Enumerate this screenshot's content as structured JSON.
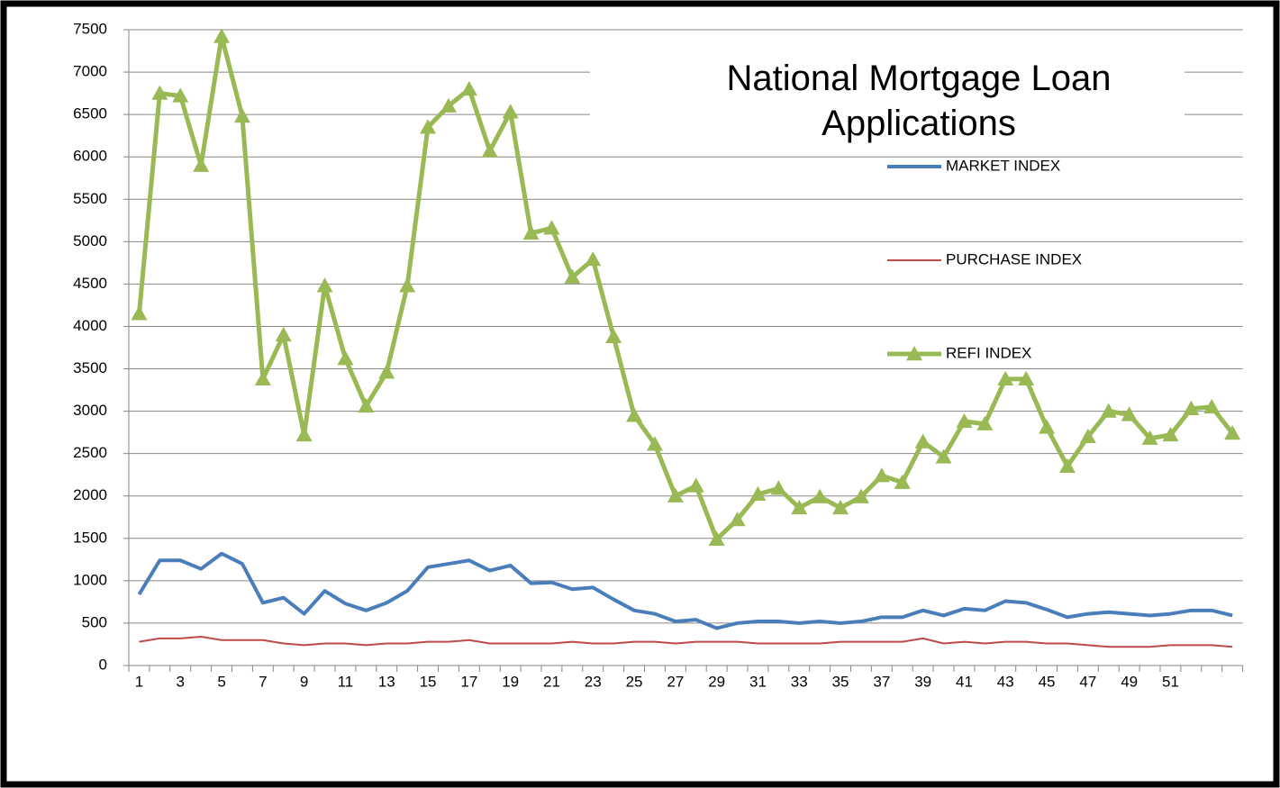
{
  "chart_data": {
    "type": "line",
    "title": "National Mortgage Loan Applications",
    "categories": [
      "1",
      null,
      "3",
      null,
      "5",
      null,
      "7",
      null,
      "9",
      null,
      "11",
      null,
      "13",
      null,
      "15",
      null,
      "17",
      null,
      "19",
      null,
      "21",
      null,
      "23",
      null,
      "25",
      null,
      "27",
      null,
      "29",
      null,
      "31",
      null,
      "33",
      null,
      "35",
      null,
      "37",
      null,
      "39",
      null,
      "41",
      null,
      "43",
      null,
      "45",
      null,
      "47",
      null,
      "49",
      null,
      "51",
      null,
      null,
      null
    ],
    "series": [
      {
        "name": "MARKET INDEX",
        "color": "#4a7ebb",
        "values": [
          840,
          1240,
          1240,
          1140,
          1320,
          1200,
          740,
          800,
          610,
          880,
          730,
          650,
          740,
          880,
          1160,
          1200,
          1240,
          1120,
          1180,
          970,
          980,
          900,
          920,
          780,
          650,
          610,
          520,
          540,
          440,
          500,
          520,
          520,
          500,
          520,
          500,
          520,
          570,
          570,
          650,
          590,
          670,
          650,
          760,
          740,
          660,
          570,
          610,
          630,
          610,
          590,
          610,
          650,
          650,
          590
        ]
      },
      {
        "name": "PURCHASE INDEX",
        "color": "#be4b48",
        "values": [
          280,
          320,
          320,
          340,
          300,
          300,
          300,
          260,
          240,
          260,
          260,
          240,
          260,
          260,
          280,
          280,
          300,
          260,
          260,
          260,
          260,
          280,
          260,
          260,
          280,
          280,
          260,
          280,
          280,
          280,
          260,
          260,
          260,
          260,
          280,
          280,
          280,
          280,
          320,
          260,
          280,
          260,
          280,
          280,
          260,
          260,
          240,
          220,
          220,
          220,
          240,
          240,
          240,
          220
        ]
      },
      {
        "name": "REFI INDEX",
        "color": "#98b954",
        "marker": "triangle",
        "values": [
          4150,
          6750,
          6720,
          5900,
          7420,
          6480,
          3380,
          3900,
          2720,
          4480,
          3620,
          3060,
          3460,
          4480,
          6350,
          6600,
          6800,
          6070,
          6530,
          5100,
          5160,
          4580,
          4790,
          3880,
          2950,
          2610,
          2000,
          2120,
          1490,
          1720,
          2020,
          2090,
          1860,
          1990,
          1860,
          1990,
          2240,
          2160,
          2640,
          2460,
          2880,
          2850,
          3380,
          3380,
          2810,
          2350,
          2700,
          3000,
          2960,
          2680,
          2720,
          3030,
          3050,
          2740
        ]
      }
    ],
    "ylim": [
      0,
      7500
    ],
    "yticks": [
      0,
      500,
      1000,
      1500,
      2000,
      2500,
      3000,
      3500,
      4000,
      4500,
      5000,
      5500,
      6000,
      6500,
      7000,
      7500
    ],
    "grid": true,
    "legend": "right"
  }
}
